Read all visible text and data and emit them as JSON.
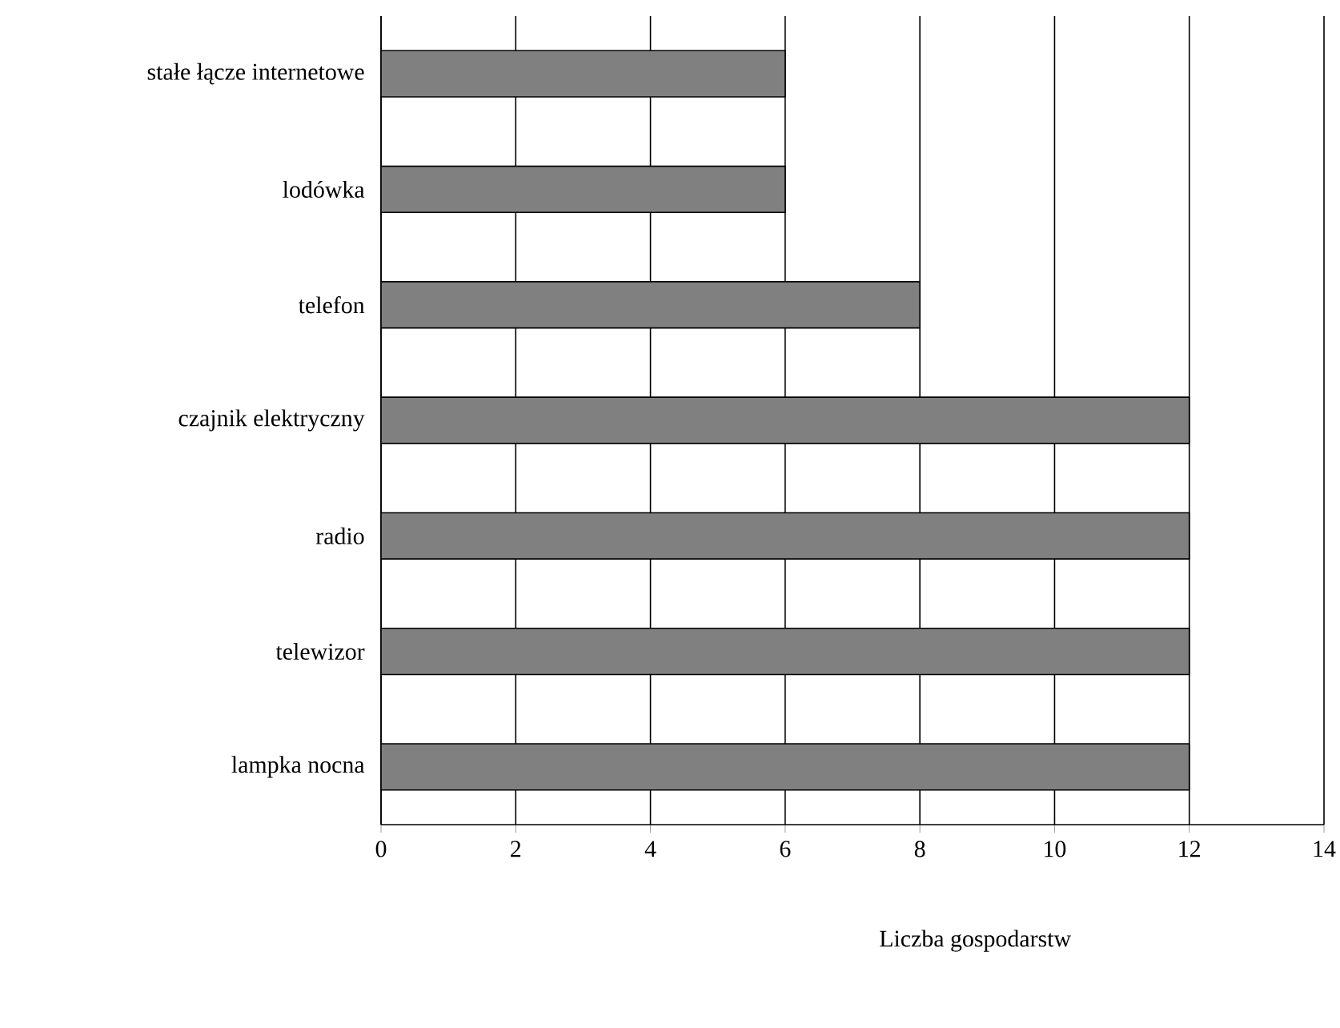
{
  "chart_data": {
    "type": "bar",
    "orientation": "horizontal",
    "categories": [
      "stałe łącze internetowe",
      "lodówka",
      "telefon",
      "czajnik elektryczny",
      "radio",
      "telewizor",
      "lampka nocna"
    ],
    "values": [
      6,
      6,
      8,
      12,
      12,
      12,
      12
    ],
    "color": "#808080",
    "xlim": [
      0,
      14
    ],
    "xticks": [
      0,
      2,
      4,
      6,
      8,
      10,
      12,
      14
    ],
    "xlabel": "Liczba gospodarstw",
    "grid": "x"
  }
}
